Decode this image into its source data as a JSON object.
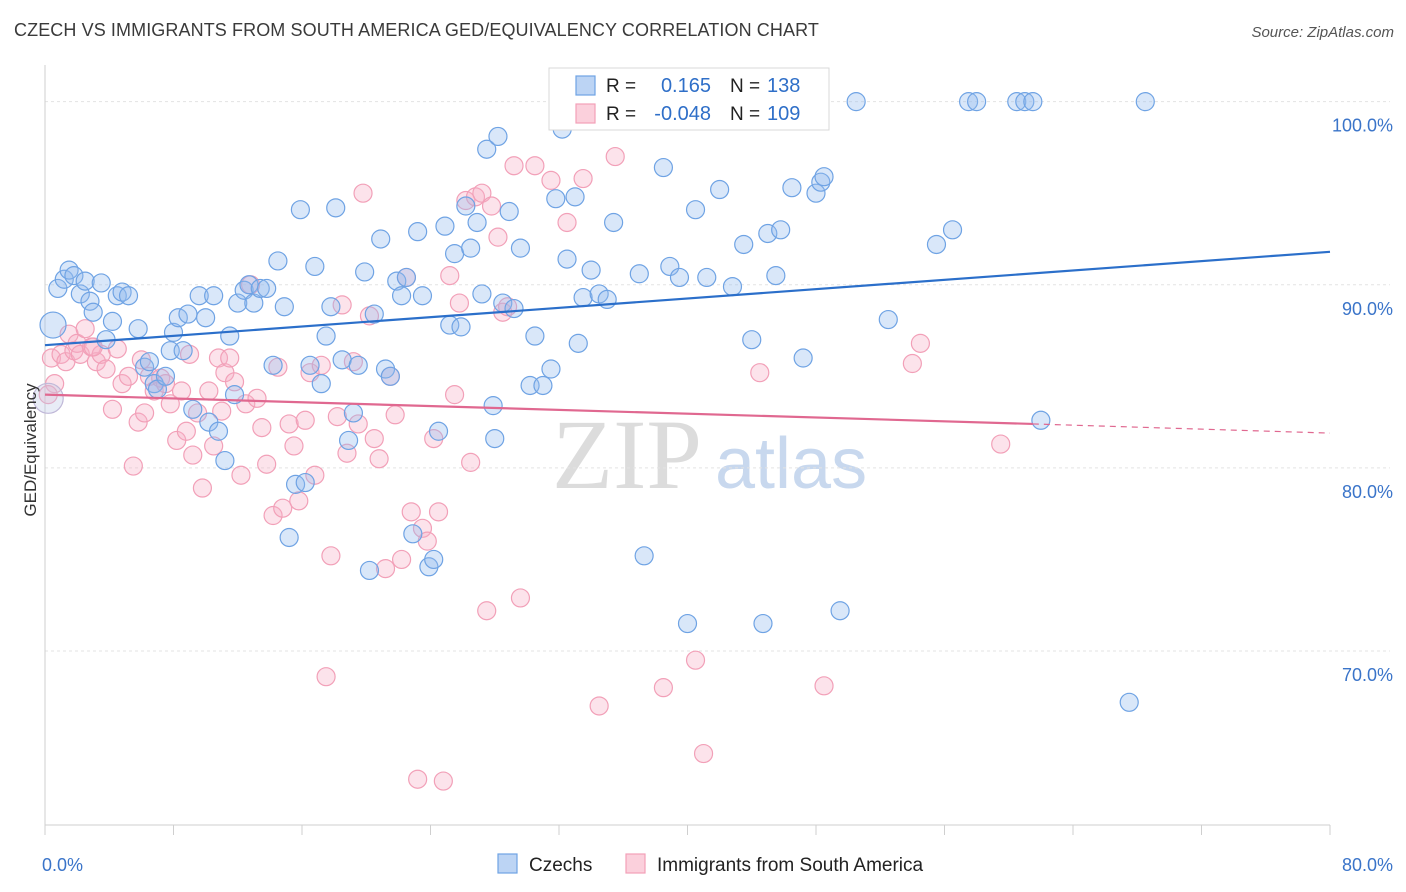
{
  "title": "CZECH VS IMMIGRANTS FROM SOUTH AMERICA GED/EQUIVALENCY CORRELATION CHART",
  "source": "Source: ZipAtlas.com",
  "watermark": {
    "zip": "ZIP",
    "atlas": "atlas"
  },
  "chart_data": {
    "type": "scatter",
    "ylabel": "GED/Equivalency",
    "xlim": [
      0,
      80
    ],
    "ylim": [
      60.5,
      102
    ],
    "x_tick_labels": [
      "0.0%",
      "80.0%"
    ],
    "y_ticks": [
      {
        "value": 70,
        "label": "70.0%"
      },
      {
        "value": 80,
        "label": "80.0%"
      },
      {
        "value": 90,
        "label": "90.0%"
      },
      {
        "value": 100,
        "label": "100.0%"
      }
    ],
    "grid": true,
    "colors": {
      "czechs": "#6fa3e4",
      "czechs_line": "#2b6fca",
      "immigrants": "#f2a0b8",
      "immigrants_line": "#e06890"
    },
    "stats": [
      {
        "r_label": "R =",
        "r_value": "0.165",
        "n_label": "N =",
        "n_value": "138"
      },
      {
        "r_label": "R =",
        "r_value": "-0.048",
        "n_label": "N =",
        "n_value": "109"
      }
    ],
    "series": [
      {
        "name": "Czechs",
        "trend": {
          "x": [
            0,
            80
          ],
          "y": [
            86.7,
            91.8
          ]
        },
        "points": [
          [
            0.5,
            87.8
          ],
          [
            0.8,
            89.8
          ],
          [
            1.2,
            90.3
          ],
          [
            1.5,
            90.8
          ],
          [
            1.8,
            90.5
          ],
          [
            2.2,
            89.5
          ],
          [
            2.5,
            90.2
          ],
          [
            2.8,
            89.1
          ],
          [
            3.0,
            88.5
          ],
          [
            3.5,
            90.1
          ],
          [
            3.8,
            87.0
          ],
          [
            4.2,
            88.0
          ],
          [
            4.5,
            89.4
          ],
          [
            4.8,
            89.6
          ],
          [
            5.2,
            89.4
          ],
          [
            5.8,
            87.6
          ],
          [
            6.2,
            85.5
          ],
          [
            6.5,
            85.8
          ],
          [
            6.8,
            84.6
          ],
          [
            7.0,
            84.3
          ],
          [
            7.5,
            85.0
          ],
          [
            7.8,
            86.4
          ],
          [
            8.0,
            87.4
          ],
          [
            8.3,
            88.2
          ],
          [
            8.6,
            86.4
          ],
          [
            8.9,
            88.4
          ],
          [
            9.2,
            83.2
          ],
          [
            9.6,
            89.4
          ],
          [
            10.0,
            88.2
          ],
          [
            10.2,
            82.5
          ],
          [
            10.5,
            89.4
          ],
          [
            10.8,
            82.0
          ],
          [
            11.2,
            80.4
          ],
          [
            11.5,
            87.2
          ],
          [
            11.8,
            84.0
          ],
          [
            12.0,
            89.0
          ],
          [
            12.4,
            89.7
          ],
          [
            12.7,
            90.0
          ],
          [
            13.0,
            89.0
          ],
          [
            13.4,
            89.8
          ],
          [
            13.8,
            89.8
          ],
          [
            14.2,
            85.6
          ],
          [
            14.5,
            91.3
          ],
          [
            14.9,
            88.8
          ],
          [
            15.2,
            76.2
          ],
          [
            15.6,
            79.1
          ],
          [
            15.9,
            94.1
          ],
          [
            16.2,
            79.2
          ],
          [
            16.5,
            85.6
          ],
          [
            16.8,
            91.0
          ],
          [
            17.2,
            84.6
          ],
          [
            17.5,
            87.2
          ],
          [
            17.8,
            88.8
          ],
          [
            18.1,
            94.2
          ],
          [
            18.5,
            85.9
          ],
          [
            18.9,
            81.5
          ],
          [
            19.2,
            83.0
          ],
          [
            19.5,
            85.6
          ],
          [
            19.9,
            90.7
          ],
          [
            20.2,
            74.4
          ],
          [
            20.5,
            88.4
          ],
          [
            20.9,
            92.5
          ],
          [
            21.2,
            85.4
          ],
          [
            21.5,
            85.0
          ],
          [
            21.9,
            90.2
          ],
          [
            22.2,
            89.4
          ],
          [
            22.5,
            90.4
          ],
          [
            22.9,
            76.4
          ],
          [
            23.2,
            92.9
          ],
          [
            23.5,
            89.4
          ],
          [
            23.9,
            74.6
          ],
          [
            24.2,
            75.0
          ],
          [
            24.5,
            82.0
          ],
          [
            24.9,
            93.2
          ],
          [
            25.2,
            87.8
          ],
          [
            25.5,
            91.7
          ],
          [
            25.9,
            87.7
          ],
          [
            26.2,
            94.3
          ],
          [
            26.5,
            92.0
          ],
          [
            26.9,
            93.4
          ],
          [
            27.2,
            89.5
          ],
          [
            27.5,
            97.4
          ],
          [
            27.9,
            83.4
          ],
          [
            28.0,
            81.6
          ],
          [
            28.2,
            98.1
          ],
          [
            28.5,
            89.0
          ],
          [
            28.9,
            94.0
          ],
          [
            29.2,
            88.7
          ],
          [
            29.6,
            92.0
          ],
          [
            30.2,
            84.5
          ],
          [
            30.5,
            87.2
          ],
          [
            31.0,
            84.5
          ],
          [
            31.5,
            85.4
          ],
          [
            31.8,
            94.7
          ],
          [
            32.2,
            98.5
          ],
          [
            32.5,
            91.4
          ],
          [
            33.0,
            94.8
          ],
          [
            33.2,
            86.8
          ],
          [
            33.5,
            89.3
          ],
          [
            34.0,
            90.8
          ],
          [
            34.5,
            89.5
          ],
          [
            35.0,
            89.2
          ],
          [
            35.4,
            93.4
          ],
          [
            36.0,
            100.0
          ],
          [
            37.0,
            90.6
          ],
          [
            37.3,
            75.2
          ],
          [
            38.5,
            96.4
          ],
          [
            38.9,
            91.0
          ],
          [
            39.5,
            90.4
          ],
          [
            40.0,
            71.5
          ],
          [
            40.5,
            94.1
          ],
          [
            41.2,
            90.4
          ],
          [
            42.0,
            95.2
          ],
          [
            42.8,
            89.9
          ],
          [
            43.5,
            92.2
          ],
          [
            44.0,
            87.0
          ],
          [
            44.7,
            71.5
          ],
          [
            45.0,
            92.8
          ],
          [
            45.5,
            90.5
          ],
          [
            45.8,
            93.0
          ],
          [
            46.5,
            95.3
          ],
          [
            47.2,
            86.0
          ],
          [
            48.0,
            95.0
          ],
          [
            48.3,
            95.6
          ],
          [
            48.5,
            95.9
          ],
          [
            49.5,
            72.2
          ],
          [
            50.5,
            100.0
          ],
          [
            52.5,
            88.1
          ],
          [
            55.5,
            92.2
          ],
          [
            56.5,
            93.0
          ],
          [
            57.5,
            100.0
          ],
          [
            58.0,
            100.0
          ],
          [
            60.5,
            100.0
          ],
          [
            61.0,
            100.0
          ],
          [
            61.5,
            100.0
          ],
          [
            62.0,
            82.6
          ],
          [
            67.5,
            67.2
          ],
          [
            68.5,
            100.0
          ]
        ]
      },
      {
        "name": "Immigrants from South America",
        "trend": {
          "x": [
            0,
            61.5
          ],
          "y": [
            84.0,
            82.4
          ]
        },
        "trend_dashed": {
          "x": [
            61.5,
            80
          ],
          "y": [
            82.4,
            81.9
          ]
        },
        "points": [
          [
            0.4,
            86.0
          ],
          [
            0.6,
            84.6
          ],
          [
            1.0,
            86.2
          ],
          [
            1.3,
            85.8
          ],
          [
            1.5,
            87.3
          ],
          [
            1.8,
            86.4
          ],
          [
            2.0,
            86.8
          ],
          [
            2.2,
            86.2
          ],
          [
            2.5,
            87.6
          ],
          [
            2.9,
            86.6
          ],
          [
            3.2,
            85.8
          ],
          [
            3.5,
            86.2
          ],
          [
            3.8,
            85.4
          ],
          [
            4.2,
            83.2
          ],
          [
            4.5,
            86.5
          ],
          [
            4.8,
            84.6
          ],
          [
            5.2,
            85.0
          ],
          [
            5.5,
            80.1
          ],
          [
            5.8,
            82.5
          ],
          [
            6.2,
            83.0
          ],
          [
            6.5,
            85.0
          ],
          [
            6.8,
            84.2
          ],
          [
            7.2,
            84.9
          ],
          [
            7.5,
            84.6
          ],
          [
            7.8,
            83.5
          ],
          [
            8.2,
            81.5
          ],
          [
            8.5,
            84.2
          ],
          [
            8.8,
            82.0
          ],
          [
            9.2,
            80.7
          ],
          [
            9.5,
            83.0
          ],
          [
            9.8,
            78.9
          ],
          [
            10.2,
            84.2
          ],
          [
            10.5,
            81.2
          ],
          [
            10.8,
            86.0
          ],
          [
            11.2,
            85.2
          ],
          [
            11.5,
            86.0
          ],
          [
            11.8,
            84.7
          ],
          [
            12.2,
            79.6
          ],
          [
            12.5,
            83.5
          ],
          [
            12.8,
            90.0
          ],
          [
            13.2,
            83.8
          ],
          [
            13.5,
            82.2
          ],
          [
            13.8,
            80.2
          ],
          [
            14.2,
            77.4
          ],
          [
            14.5,
            85.5
          ],
          [
            14.8,
            77.8
          ],
          [
            15.2,
            82.4
          ],
          [
            15.5,
            81.2
          ],
          [
            15.8,
            78.2
          ],
          [
            16.2,
            82.6
          ],
          [
            16.5,
            85.2
          ],
          [
            16.8,
            79.6
          ],
          [
            17.2,
            85.6
          ],
          [
            17.5,
            68.6
          ],
          [
            17.8,
            75.2
          ],
          [
            18.2,
            82.8
          ],
          [
            18.5,
            88.9
          ],
          [
            18.8,
            80.8
          ],
          [
            19.2,
            85.8
          ],
          [
            19.5,
            82.4
          ],
          [
            19.8,
            95.0
          ],
          [
            20.2,
            88.3
          ],
          [
            20.5,
            81.6
          ],
          [
            20.8,
            80.5
          ],
          [
            21.2,
            74.5
          ],
          [
            21.5,
            85.0
          ],
          [
            21.8,
            82.9
          ],
          [
            22.2,
            75.0
          ],
          [
            22.5,
            90.4
          ],
          [
            22.8,
            77.6
          ],
          [
            23.2,
            63.0
          ],
          [
            23.5,
            76.7
          ],
          [
            23.8,
            76.0
          ],
          [
            24.2,
            81.6
          ],
          [
            24.5,
            77.6
          ],
          [
            24.8,
            62.9
          ],
          [
            25.2,
            90.5
          ],
          [
            25.5,
            84.0
          ],
          [
            25.8,
            89.0
          ],
          [
            26.2,
            94.6
          ],
          [
            26.5,
            80.3
          ],
          [
            26.8,
            94.8
          ],
          [
            27.2,
            95.0
          ],
          [
            27.5,
            72.2
          ],
          [
            27.8,
            94.3
          ],
          [
            28.2,
            92.6
          ],
          [
            28.5,
            88.5
          ],
          [
            28.8,
            88.8
          ],
          [
            29.2,
            96.5
          ],
          [
            29.6,
            72.9
          ],
          [
            30.5,
            96.5
          ],
          [
            31.5,
            95.7
          ],
          [
            32.5,
            93.4
          ],
          [
            33.5,
            95.8
          ],
          [
            34.5,
            67.0
          ],
          [
            35.5,
            97.0
          ],
          [
            38.5,
            68.0
          ],
          [
            40.5,
            69.5
          ],
          [
            41.0,
            64.4
          ],
          [
            44.5,
            85.2
          ],
          [
            48.5,
            68.1
          ],
          [
            54.0,
            85.7
          ],
          [
            54.5,
            86.8
          ],
          [
            59.5,
            81.3
          ],
          [
            0.2,
            84.0
          ],
          [
            3.0,
            86.6
          ],
          [
            6.0,
            85.9
          ],
          [
            9.0,
            86.2
          ],
          [
            11.0,
            83.1
          ]
        ]
      }
    ]
  },
  "legend": [
    {
      "label": "Czechs"
    },
    {
      "label": "Immigrants from South America"
    }
  ]
}
